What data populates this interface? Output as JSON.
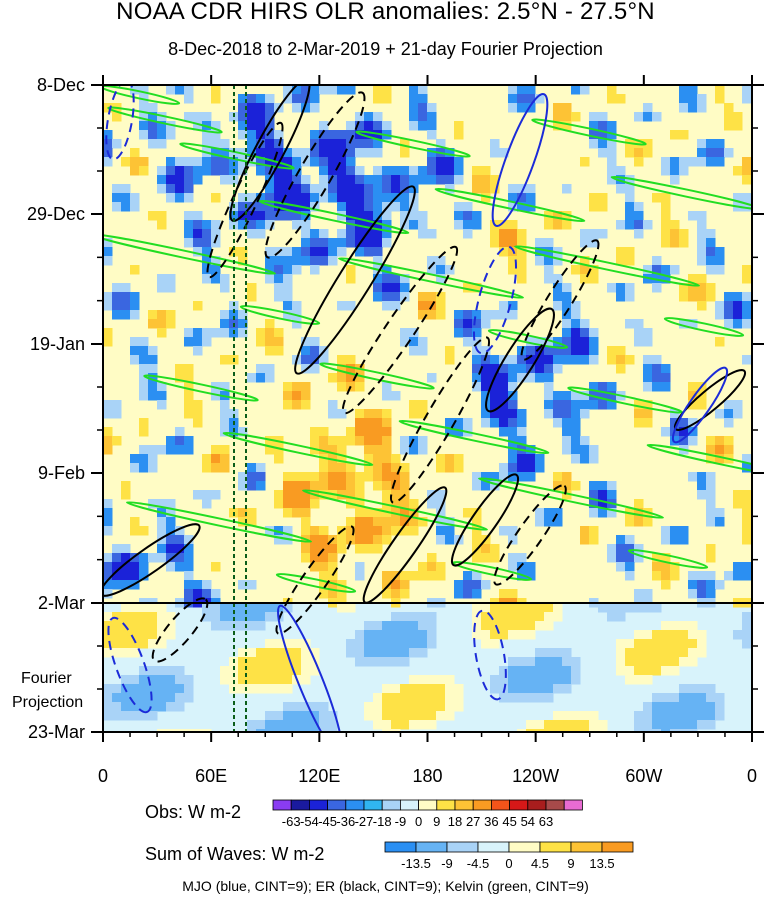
{
  "title": "NOAA CDR HIRS OLR anomalies: 2.5°N - 27.5°N",
  "subtitle": "8-Dec-2018 to 2-Mar-2019 + 21-day Fourier Projection",
  "y_ticks": [
    "8-Dec",
    "29-Dec",
    "19-Jan",
    "9-Feb",
    "2-Mar",
    "23-Mar"
  ],
  "x_ticks": [
    "0",
    "60E",
    "120E",
    "180",
    "120W",
    "60W",
    "0"
  ],
  "fourier_label_line1": "Fourier",
  "fourier_label_line2": "Projection",
  "obs_legend": {
    "label": "Obs: W m-2",
    "levels": [
      "-63",
      "-54",
      "-45",
      "-36",
      "-27",
      "-18",
      "-9",
      "0",
      "9",
      "18",
      "27",
      "36",
      "45",
      "54",
      "63"
    ],
    "colors": [
      "#8a3cf2",
      "#1a1a9e",
      "#1b22d8",
      "#3a66e0",
      "#2b8ff2",
      "#30b5f0",
      "#a9d3f7",
      "#d8f3fb",
      "#fffcc5",
      "#fee246",
      "#fdc335",
      "#f99b22",
      "#f3541a",
      "#d61818",
      "#a81d1d",
      "#a74a4a",
      "#e86bd2"
    ]
  },
  "waves_legend": {
    "label": "Sum of Waves: W m-2",
    "levels": [
      "-13.5",
      "-9",
      "-4.5",
      "0",
      "4.5",
      "9",
      "13.5"
    ],
    "colors": [
      "#2b8ff2",
      "#66b3f4",
      "#a9d3f7",
      "#d8f3fb",
      "#fffcc5",
      "#fee246",
      "#fdc335",
      "#f99b22"
    ]
  },
  "footnote": "MJO (blue, CINT=9); ER (black, CINT=9); Kelvin (green, CINT=9)",
  "chart_data": {
    "type": "heatmap",
    "title": "NOAA CDR HIRS OLR anomalies: 2.5°N - 27.5°N",
    "subtitle": "8-Dec-2018 to 2-Mar-2019 + 21-day Fourier Projection",
    "x_axis": {
      "ticks": [
        "0",
        "60E",
        "120E",
        "180",
        "120W",
        "60W",
        "0"
      ],
      "range_deg": [
        0,
        360
      ]
    },
    "y_axis": {
      "ticks": [
        "8-Dec",
        "29-Dec",
        "19-Jan",
        "9-Feb",
        "2-Mar",
        "23-Mar"
      ],
      "reversed": true
    },
    "observation_end": "2-Mar",
    "projection_label": "Fourier Projection",
    "colorbar_obs_levels": [
      -63,
      -54,
      -45,
      -36,
      -27,
      -18,
      -9,
      0,
      9,
      18,
      27,
      36,
      45,
      54,
      63
    ],
    "colorbar_waves_levels": [
      -13.5,
      -9,
      -4.5,
      0,
      4.5,
      9,
      13.5
    ],
    "contours": [
      {
        "name": "MJO",
        "color": "blue",
        "cint": 9
      },
      {
        "name": "ER",
        "color": "black",
        "cint": 9
      },
      {
        "name": "Kelvin",
        "color": "green",
        "cint": 9
      }
    ],
    "reference_lines_lon_deg": [
      70,
      80
    ]
  }
}
